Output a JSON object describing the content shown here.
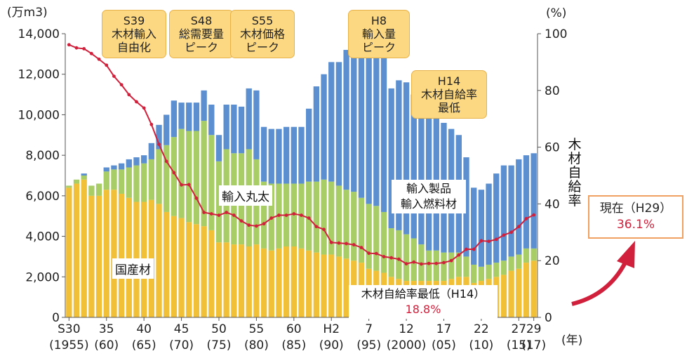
{
  "chart_data": {
    "type": "bar",
    "stacked": true,
    "left_axis_unit": "(万m3)",
    "right_axis_unit": "(%)",
    "x_axis_unit": "(年)",
    "ylim": [
      0,
      14000
    ],
    "y2lim": [
      0,
      100
    ],
    "y_ticks": [
      "0",
      "2,000",
      "4,000",
      "6,000",
      "8,000",
      "10,000",
      "12,000",
      "14,000"
    ],
    "y2_ticks": [
      "0",
      "20",
      "40",
      "60",
      "80",
      "100"
    ],
    "years": [
      1955,
      1956,
      1957,
      1958,
      1959,
      1960,
      1961,
      1962,
      1963,
      1964,
      1965,
      1966,
      1967,
      1968,
      1969,
      1970,
      1971,
      1972,
      1973,
      1974,
      1975,
      1976,
      1977,
      1978,
      1979,
      1980,
      1981,
      1982,
      1983,
      1984,
      1985,
      1986,
      1987,
      1988,
      1989,
      1990,
      1991,
      1992,
      1993,
      1994,
      1995,
      1996,
      1997,
      1998,
      1999,
      2000,
      2001,
      2002,
      2003,
      2004,
      2005,
      2006,
      2007,
      2008,
      2009,
      2010,
      2011,
      2012,
      2013,
      2014,
      2015,
      2016,
      2017
    ],
    "x_tick_labels": [
      {
        "year": 1955,
        "line1": "S30",
        "line2": "(1955)"
      },
      {
        "year": 1960,
        "line1": "35",
        "line2": "(60)"
      },
      {
        "year": 1965,
        "line1": "40",
        "line2": "(65)"
      },
      {
        "year": 1970,
        "line1": "45",
        "line2": "(70)"
      },
      {
        "year": 1975,
        "line1": "50",
        "line2": "(75)"
      },
      {
        "year": 1980,
        "line1": "55",
        "line2": "(80)"
      },
      {
        "year": 1985,
        "line1": "60",
        "line2": "(85)"
      },
      {
        "year": 1990,
        "line1": "H2",
        "line2": "(90)"
      },
      {
        "year": 1995,
        "line1": "7",
        "line2": "(95)"
      },
      {
        "year": 2000,
        "line1": "12",
        "line2": "(2000)"
      },
      {
        "year": 2005,
        "line1": "17",
        "line2": "(05)"
      },
      {
        "year": 2010,
        "line1": "22",
        "line2": "(10)"
      },
      {
        "year": 2015,
        "line1": "27",
        "line2": "(15)"
      },
      {
        "year": 2017,
        "line1": "29",
        "line2": "(17)"
      }
    ],
    "series": [
      {
        "name": "国産材",
        "color": "#f2c037",
        "values": [
          6400,
          6600,
          6800,
          6000,
          6000,
          6300,
          6300,
          6100,
          5900,
          5700,
          5700,
          5800,
          5600,
          5200,
          5000,
          4900,
          4700,
          4600,
          4500,
          4300,
          3700,
          3700,
          3600,
          3600,
          3500,
          3600,
          3400,
          3300,
          3400,
          3500,
          3500,
          3400,
          3300,
          3200,
          3100,
          3100,
          3000,
          2900,
          2800,
          2700,
          2400,
          2300,
          2200,
          2000,
          1900,
          1800,
          1800,
          1800,
          1800,
          1800,
          1800,
          1900,
          2000,
          2000,
          1700,
          1800,
          1900,
          2000,
          2100,
          2300,
          2400,
          2700,
          2800
        ]
      },
      {
        "name": "輸入丸太",
        "color": "#a8cd66",
        "values": [
          100,
          200,
          200,
          500,
          600,
          900,
          1000,
          1200,
          1500,
          1800,
          1900,
          2000,
          2700,
          3300,
          3900,
          4400,
          4500,
          4600,
          5200,
          4700,
          4000,
          4600,
          4500,
          4500,
          4800,
          4200,
          3300,
          3300,
          3200,
          3100,
          3100,
          3200,
          3400,
          3500,
          3700,
          3600,
          3500,
          3400,
          3400,
          3200,
          3200,
          3200,
          3000,
          2400,
          2400,
          2300,
          2100,
          1800,
          1500,
          1500,
          1400,
          1300,
          1200,
          1000,
          900,
          700,
          700,
          700,
          700,
          700,
          700,
          700,
          600
        ]
      },
      {
        "name": "輸入製品 輸入燃料材",
        "color": "#5b8fd0",
        "values": [
          0,
          0,
          100,
          0,
          0,
          200,
          200,
          300,
          400,
          400,
          400,
          800,
          1200,
          1500,
          1800,
          1300,
          1400,
          1400,
          1500,
          1500,
          1300,
          2200,
          2400,
          2300,
          3000,
          3400,
          2700,
          2700,
          2700,
          2800,
          2800,
          2800,
          3600,
          4700,
          5200,
          5900,
          6100,
          6900,
          7400,
          7300,
          7700,
          7500,
          7600,
          6900,
          7400,
          7500,
          7100,
          6700,
          7100,
          6600,
          6400,
          6100,
          5800,
          4900,
          3800,
          3800,
          4000,
          4400,
          4700,
          4500,
          4700,
          4600,
          4700
        ]
      }
    ],
    "line_series": {
      "name": "木材自給率",
      "color": "#d1203b",
      "axis": "right",
      "values": [
        96.1,
        95,
        94.7,
        93,
        91,
        88.9,
        85,
        82,
        78.5,
        76,
        73.8,
        68,
        61,
        55,
        51,
        46.7,
        46.8,
        42,
        37,
        36.5,
        36,
        37,
        36,
        34,
        32.5,
        32.2,
        33,
        35,
        36,
        36,
        36.5,
        36,
        35,
        32,
        31,
        26.4,
        26.2,
        26,
        25.6,
        24.6,
        22.6,
        22.5,
        21.4,
        21,
        20.5,
        18.9,
        19.5,
        18.8,
        19,
        19,
        19.3,
        20,
        22,
        24,
        24,
        27,
        26.8,
        27.5,
        29,
        30,
        32,
        34.8,
        36.1
      ]
    },
    "annotations": {
      "badges": [
        [
          "S39",
          "木材輸入",
          "自由化"
        ],
        [
          "S48",
          "総需要量",
          "ピーク"
        ],
        [
          "S55",
          "木材価格",
          "ピーク"
        ],
        [
          "H8",
          "輸入量",
          "ピーク"
        ],
        [
          "H14",
          "木材自給率",
          "最低"
        ]
      ],
      "domestic_label": "国産材",
      "log_label": "輸入丸太",
      "product_label_line1": "輸入製品",
      "product_label_line2": "輸入燃料材",
      "rate_axis_label": [
        "木",
        "材",
        "自",
        "給",
        "率"
      ],
      "min_label": "木材自給率最低（H14）",
      "min_value": "18.8%",
      "current_label": "現在（H29）",
      "current_value": "36.1%"
    }
  }
}
